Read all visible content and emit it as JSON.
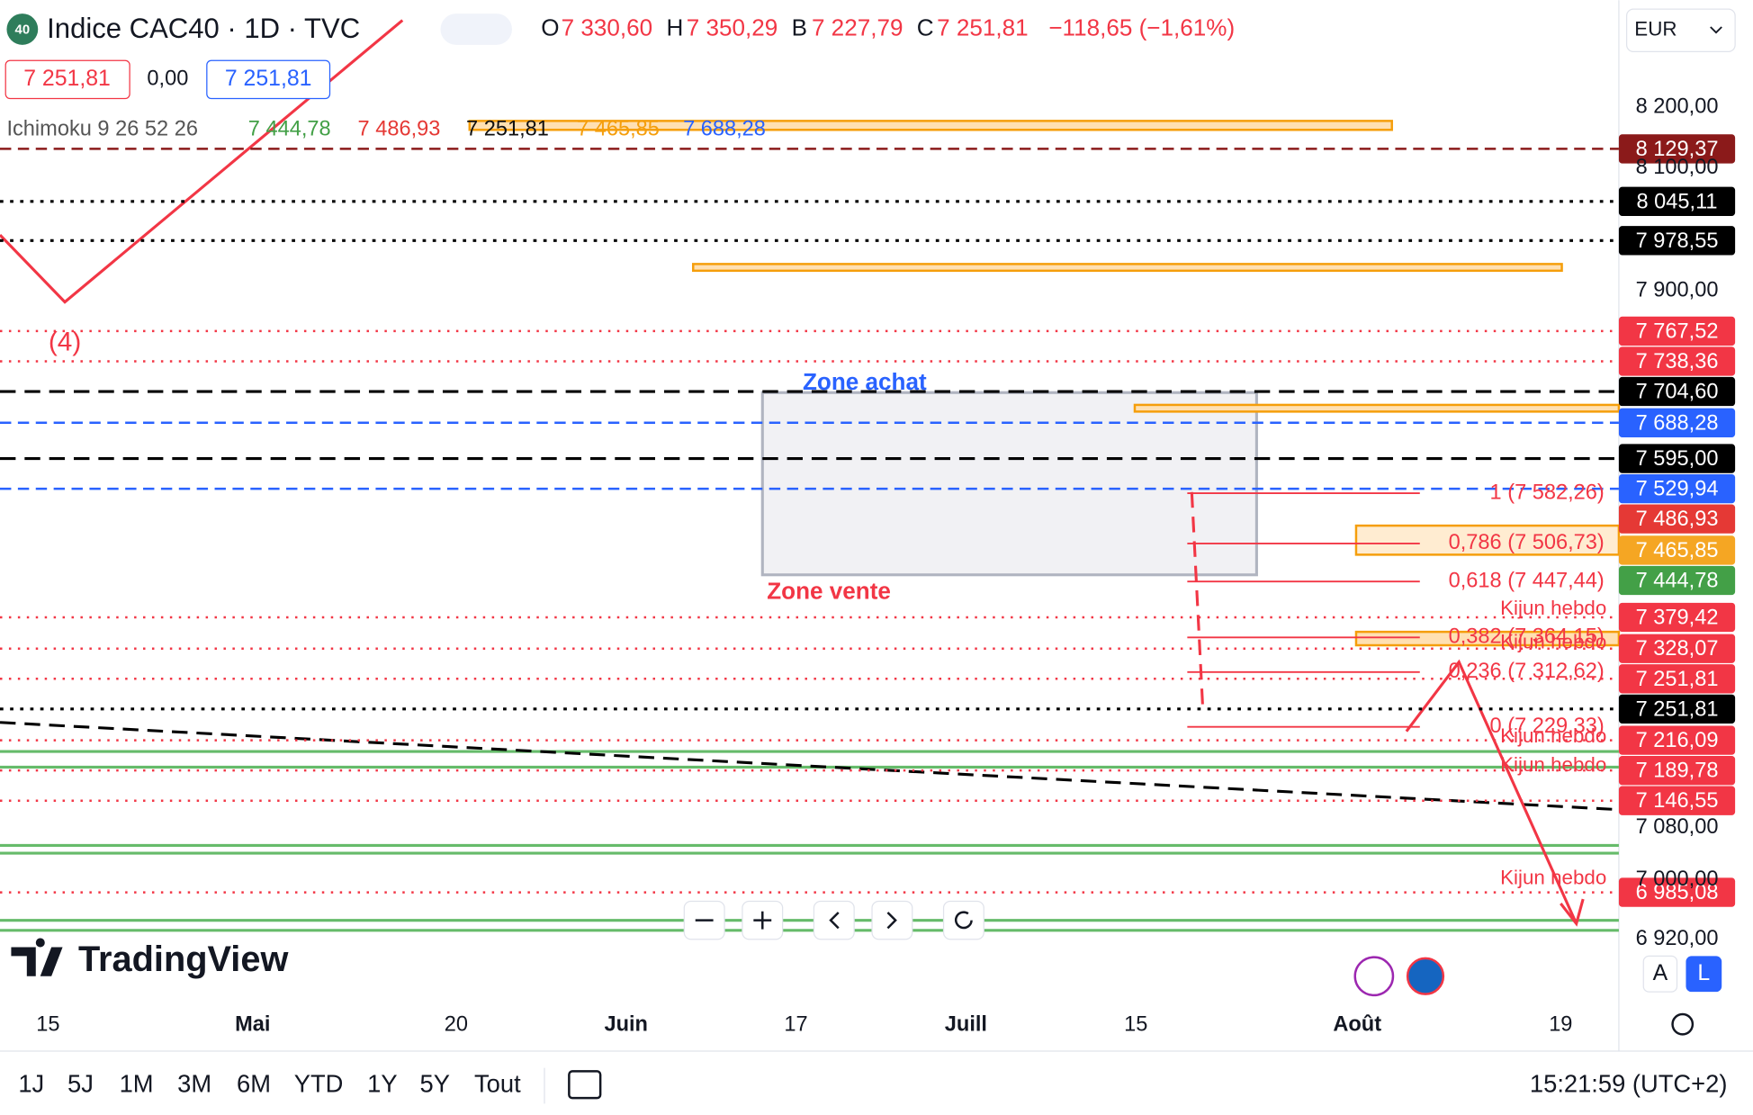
{
  "header": {
    "badge": "40",
    "title": "Indice CAC40 · 1D · TVC",
    "ohlc": [
      {
        "key": "O",
        "value": "7 330,60"
      },
      {
        "key": "H",
        "value": "7 350,29"
      },
      {
        "key": "B",
        "value": "7 227,79"
      },
      {
        "key": "C",
        "value": "7 251,81"
      }
    ],
    "change": "−118,65 (−1,61%)",
    "currency": "EUR"
  },
  "price_boxes": [
    "7 251,81",
    "0,00",
    "7 251,81"
  ],
  "indicator": {
    "name": "Ichimoku 9 26 52 26",
    "values": [
      {
        "text": "7 444,78",
        "color": "#43a047"
      },
      {
        "text": "7 486,93",
        "color": "#e53935"
      },
      {
        "text": "7 251,81",
        "color": "#111111"
      },
      {
        "text": "7 465,85",
        "color": "#f59e0b"
      },
      {
        "text": "7 688,28",
        "color": "#2962ff"
      }
    ]
  },
  "price_axis": {
    "ticks": [
      "8 200,00",
      "8 100,00",
      "7 900,00",
      "7 080,00",
      "7 000,00",
      "6 920,00"
    ],
    "markers": [
      {
        "label": "8 129,37",
        "color": "#8b1a1a"
      },
      {
        "label": "8 045,11",
        "color": "#000000"
      },
      {
        "label": "7 978,55",
        "color": "#000000"
      },
      {
        "label": "7 767,52",
        "color": "#f23645"
      },
      {
        "label": "7 738,36",
        "color": "#f23645"
      },
      {
        "label": "7 704,60",
        "color": "#000000"
      },
      {
        "label": "7 688,28",
        "color": "#2962ff"
      },
      {
        "label": "7 595,00",
        "color": "#000000"
      },
      {
        "label": "7 529,94",
        "color": "#2962ff"
      },
      {
        "label": "7 486,93",
        "color": "#e53935"
      },
      {
        "label": "7 465,85",
        "color": "#f5a623"
      },
      {
        "label": "7 444,78",
        "color": "#43a047"
      },
      {
        "label": "7 379,42",
        "color": "#f23645"
      },
      {
        "label": "7 328,07",
        "color": "#f23645"
      },
      {
        "label": "7 251,81",
        "color": "#f23645"
      },
      {
        "label": "7 251,81",
        "color": "#000000"
      },
      {
        "label": "7 216,09",
        "color": "#f23645"
      },
      {
        "label": "7 189,78",
        "color": "#f23645"
      },
      {
        "label": "7 146,55",
        "color": "#f23645"
      },
      {
        "label": "6 985,08",
        "color": "#f23645"
      }
    ]
  },
  "annotations": {
    "wave": "(4)",
    "zone_buy": "Zone achat",
    "zone_sell": "Zone vente"
  },
  "fib_levels": [
    "1 (7 582,26)",
    "0,786 (7 506,73)",
    "0,618 (7 447,44)",
    "0,382 (7 364,15)",
    "0,236 (7 312,62)",
    "0 (7 229,33)"
  ],
  "kijun_labels": [
    "Kijun hebdo",
    "Kijun hebdo",
    "Kijun hebdo",
    "Kijun hebdo",
    "Kijun hebdo"
  ],
  "time_axis": [
    "15",
    "Mai",
    "20",
    "Juin",
    "17",
    "Juill",
    "15",
    "Août",
    "19"
  ],
  "ranges": [
    "1J",
    "5J",
    "1M",
    "3M",
    "6M",
    "YTD",
    "1Y",
    "5Y",
    "Tout"
  ],
  "clock": "15:21:59 (UTC+2)",
  "logo": "TradingView",
  "scale_buttons": [
    "A",
    "L"
  ]
}
